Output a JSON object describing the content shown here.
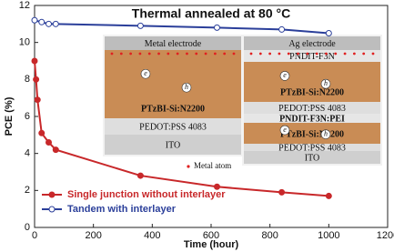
{
  "chart_data": {
    "type": "line",
    "title": "Thermal annealed at 80 °C",
    "xlabel": "Time (hour)",
    "ylabel": "PCE (%)",
    "xlim": [
      0,
      1200
    ],
    "xticks": [
      0,
      200,
      400,
      600,
      800,
      1000,
      1200
    ],
    "ylim": [
      0,
      12
    ],
    "yticks": [
      0,
      2,
      4,
      6,
      8,
      10,
      12
    ],
    "legend": "lower-left",
    "series": [
      {
        "name": "Single junction without interlayer",
        "color": "#c8282a",
        "marker": "filled",
        "x": [
          0,
          5,
          10,
          24,
          48,
          72,
          360,
          620,
          840,
          1000
        ],
        "values": [
          9.0,
          8.0,
          6.9,
          5.1,
          4.6,
          4.2,
          2.8,
          2.2,
          1.9,
          1.7
        ]
      },
      {
        "name": "Tandem with interlayer",
        "color": "#2b3f9a",
        "marker": "open",
        "x": [
          0,
          24,
          48,
          72,
          360,
          620,
          840,
          1000
        ],
        "values": [
          11.2,
          11.1,
          11.0,
          11.0,
          10.9,
          10.8,
          10.7,
          10.5
        ]
      }
    ],
    "insets": [
      {
        "layers": [
          "Metal electrode",
          "PTzBI-Si:N2200",
          "PEDOT:PSS 4083",
          "ITO"
        ],
        "note": "Metal atom"
      },
      {
        "layers": [
          "Ag electrode",
          "PNDIT-F3N",
          "PTzBI-Si:N2200",
          "PEDOT:PSS 4083",
          "PNDIT-F3N:PEI",
          "PTzBI-Si:N2200",
          "PEDOT:PSS 4083",
          "ITO"
        ]
      }
    ],
    "carriers": [
      "e",
      "h"
    ]
  }
}
